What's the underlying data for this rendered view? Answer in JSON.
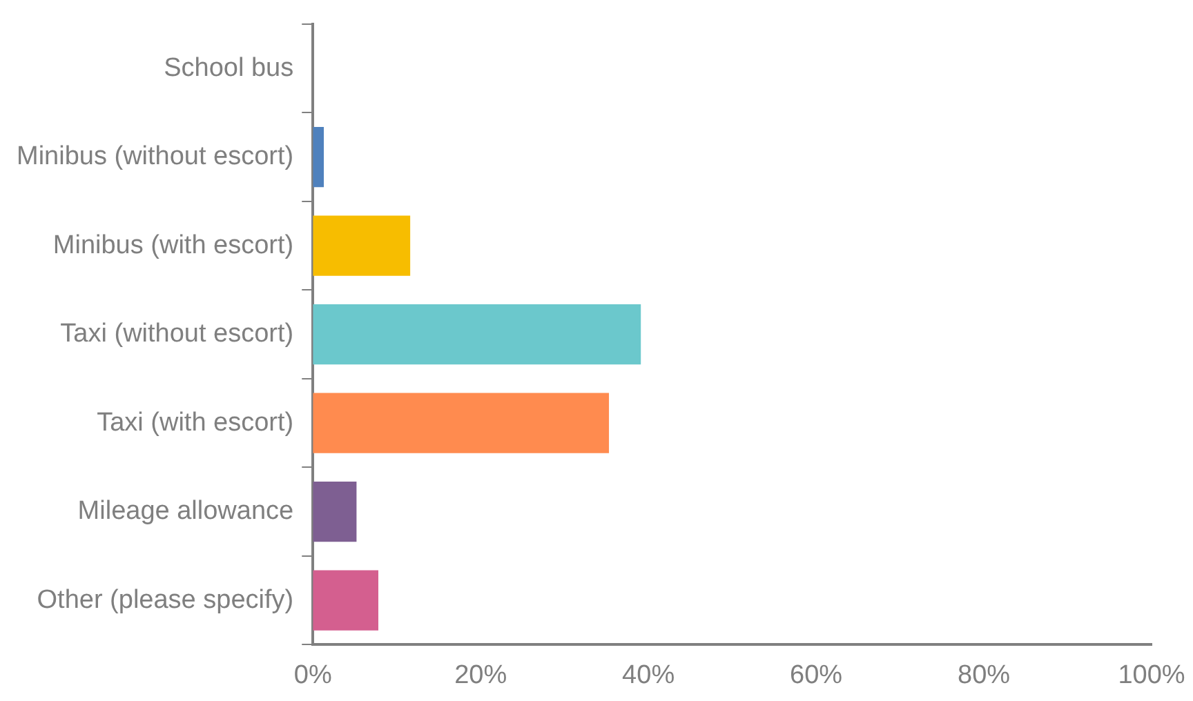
{
  "chart_data": {
    "type": "bar",
    "orientation": "horizontal",
    "categories": [
      "School bus",
      "Minibus (without escort)",
      "Minibus (with escort)",
      "Taxi (without escort)",
      "Taxi (with escort)",
      "Mileage allowance",
      "Other (please specify)"
    ],
    "values": [
      0,
      1.3,
      11.6,
      39.1,
      35.3,
      5.2,
      7.8
    ],
    "colors": [
      "#4f81bd",
      "#4f81bd",
      "#f7bd00",
      "#6bc8cc",
      "#ff8b4f",
      "#7e5f92",
      "#d45f8f"
    ],
    "xlim": [
      0,
      100
    ],
    "xticks": [
      {
        "value": 0,
        "label": "0%"
      },
      {
        "value": 20,
        "label": "20%"
      },
      {
        "value": 40,
        "label": "40%"
      },
      {
        "value": 60,
        "label": "60%"
      },
      {
        "value": 80,
        "label": "80%"
      },
      {
        "value": 100,
        "label": "100%"
      }
    ],
    "grid": false,
    "legend": false
  }
}
